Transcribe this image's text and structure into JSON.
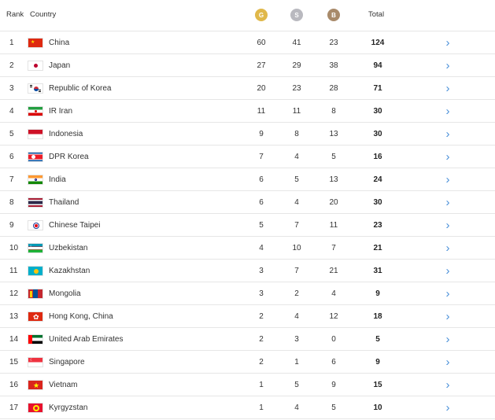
{
  "header": {
    "rank_label": "Rank",
    "country_label": "Country",
    "gold_badge": "G",
    "silver_badge": "S",
    "bronze_badge": "B",
    "total_label": "Total"
  },
  "colors": {
    "gold": "#e0b84a",
    "silver": "#b9b9bf",
    "bronze": "#a88a6a",
    "arrow": "#4a90d9"
  },
  "rows": [
    {
      "rank": "1",
      "country": "China",
      "flag": "china-flag-icon",
      "gold": "60",
      "silver": "41",
      "bronze": "23",
      "total": "124"
    },
    {
      "rank": "2",
      "country": "Japan",
      "flag": "japan-flag-icon",
      "gold": "27",
      "silver": "29",
      "bronze": "38",
      "total": "94"
    },
    {
      "rank": "3",
      "country": "Republic of Korea",
      "flag": "korea-flag-icon",
      "gold": "20",
      "silver": "23",
      "bronze": "28",
      "total": "71"
    },
    {
      "rank": "4",
      "country": "IR Iran",
      "flag": "iran-flag-icon",
      "gold": "11",
      "silver": "11",
      "bronze": "8",
      "total": "30"
    },
    {
      "rank": "5",
      "country": "Indonesia",
      "flag": "indonesia-flag-icon",
      "gold": "9",
      "silver": "8",
      "bronze": "13",
      "total": "30"
    },
    {
      "rank": "6",
      "country": "DPR Korea",
      "flag": "dpr-korea-flag-icon",
      "gold": "7",
      "silver": "4",
      "bronze": "5",
      "total": "16"
    },
    {
      "rank": "7",
      "country": "India",
      "flag": "india-flag-icon",
      "gold": "6",
      "silver": "5",
      "bronze": "13",
      "total": "24"
    },
    {
      "rank": "8",
      "country": "Thailand",
      "flag": "thailand-flag-icon",
      "gold": "6",
      "silver": "4",
      "bronze": "20",
      "total": "30"
    },
    {
      "rank": "9",
      "country": "Chinese Taipei",
      "flag": "chinese-taipei-flag-icon",
      "gold": "5",
      "silver": "7",
      "bronze": "11",
      "total": "23"
    },
    {
      "rank": "10",
      "country": "Uzbekistan",
      "flag": "uzbekistan-flag-icon",
      "gold": "4",
      "silver": "10",
      "bronze": "7",
      "total": "21"
    },
    {
      "rank": "11",
      "country": "Kazakhstan",
      "flag": "kazakhstan-flag-icon",
      "gold": "3",
      "silver": "7",
      "bronze": "21",
      "total": "31"
    },
    {
      "rank": "12",
      "country": "Mongolia",
      "flag": "mongolia-flag-icon",
      "gold": "3",
      "silver": "2",
      "bronze": "4",
      "total": "9"
    },
    {
      "rank": "13",
      "country": "Hong Kong, China",
      "flag": "hong-kong-flag-icon",
      "gold": "2",
      "silver": "4",
      "bronze": "12",
      "total": "18"
    },
    {
      "rank": "14",
      "country": "United Arab Emirates",
      "flag": "uae-flag-icon",
      "gold": "2",
      "silver": "3",
      "bronze": "0",
      "total": "5"
    },
    {
      "rank": "15",
      "country": "Singapore",
      "flag": "singapore-flag-icon",
      "gold": "2",
      "silver": "1",
      "bronze": "6",
      "total": "9"
    },
    {
      "rank": "16",
      "country": "Vietnam",
      "flag": "vietnam-flag-icon",
      "gold": "1",
      "silver": "5",
      "bronze": "9",
      "total": "15"
    },
    {
      "rank": "17",
      "country": "Kyrgyzstan",
      "flag": "kyrgyzstan-flag-icon",
      "gold": "1",
      "silver": "4",
      "bronze": "5",
      "total": "10"
    }
  ]
}
